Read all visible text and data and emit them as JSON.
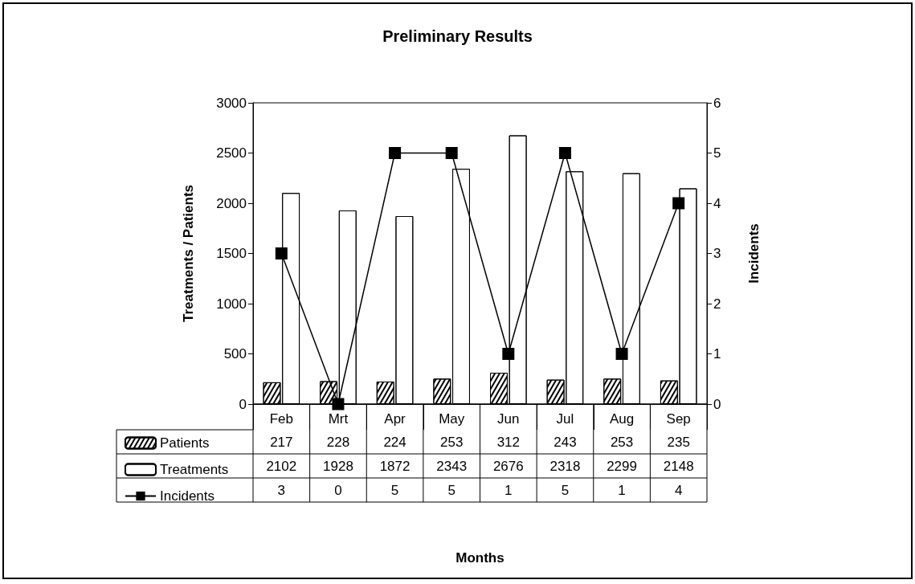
{
  "chart_data": {
    "type": "bar",
    "title": "Preliminary Results",
    "annotations": [
      "Months"
    ],
    "ylabel": "Treatments / Patients",
    "y2label": "Incidents",
    "categories": [
      "Feb",
      "Mrt",
      "Apr",
      "May",
      "Jun",
      "Jul",
      "Aug",
      "Sep"
    ],
    "series": [
      {
        "name": "Patients",
        "color": "#ffffff",
        "values": [
          217,
          228,
          224,
          253,
          312,
          243,
          253,
          235
        ]
      },
      {
        "name": "Treatments",
        "color": "#ffffff",
        "values": [
          2102,
          1928,
          1872,
          2343,
          2676,
          2318,
          2299,
          2148
        ]
      },
      {
        "name": "Incidents",
        "type": "line",
        "axis": "y2",
        "color": "#000000",
        "values": [
          3,
          0,
          5,
          5,
          1,
          5,
          1,
          4
        ]
      }
    ],
    "ylim": [
      0,
      3000
    ],
    "yticks": [
      0,
      500,
      1000,
      1500,
      2000,
      2500,
      3000
    ],
    "y2lim": [
      0,
      6
    ],
    "y2ticks": [
      0,
      1,
      2,
      3,
      4,
      5,
      6
    ],
    "marker": "square",
    "legend": "bottom left",
    "data_labels": true
  }
}
